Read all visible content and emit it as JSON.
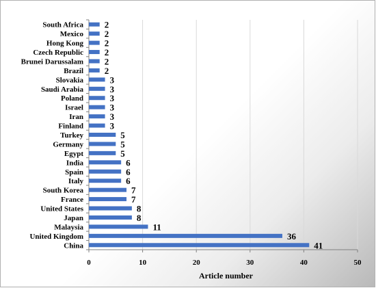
{
  "chart_data": {
    "type": "bar",
    "orientation": "horizontal",
    "categories": [
      "South Africa",
      "Mexico",
      "Hong Kong",
      "Czech Republic",
      "Brunei Darussalam",
      "Brazil",
      "Slovakia",
      "Saudi Arabia",
      "Poland",
      "Israel",
      "Iran",
      "Finland",
      "Turkey",
      "Germany",
      "Egypt",
      "India",
      "Spain",
      "Italy",
      "South Korea",
      "France",
      "United States",
      "Japan",
      "Malaysia",
      "United Kingdom",
      "China"
    ],
    "values": [
      2,
      2,
      2,
      2,
      2,
      2,
      3,
      3,
      3,
      3,
      3,
      3,
      5,
      5,
      5,
      6,
      6,
      6,
      7,
      7,
      8,
      8,
      11,
      36,
      41
    ],
    "title": "",
    "xlabel": "Article number",
    "ylabel": "",
    "xlim": [
      0,
      50
    ],
    "xticks": [
      0,
      10,
      20,
      30,
      40,
      50
    ],
    "grid": "vertical",
    "data_labels": true,
    "bar_color": "#4472C4"
  }
}
